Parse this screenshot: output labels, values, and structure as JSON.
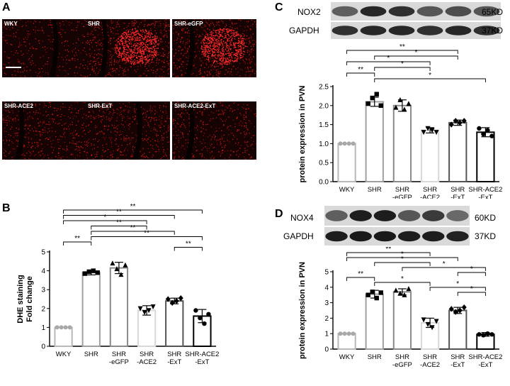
{
  "panelA": {
    "letter": "A",
    "images": [
      {
        "label": "WKY",
        "density": 0.35,
        "cluster": 0,
        "vessel": "right"
      },
      {
        "label": "SHR",
        "density": 0.7,
        "cluster": 1,
        "vessel": "left"
      },
      {
        "label": "SHR-eGFP",
        "density": 0.7,
        "cluster": 1,
        "vessel": "left"
      },
      {
        "label": "SHR-ACE2",
        "density": 0.5,
        "cluster": 0,
        "vessel": "left"
      },
      {
        "label": "SHR-ExT",
        "density": 0.55,
        "cluster": 0,
        "vessel": "right"
      },
      {
        "label": "SHR-ACE2-ExT",
        "density": 0.5,
        "cluster": 0,
        "vessel": "left"
      }
    ]
  },
  "panelB": {
    "letter": "B",
    "ylabel_line1": "DHE staining",
    "ylabel_line2": "Fold change"
  },
  "panelC": {
    "letter": "C",
    "blot_top": "NOX2",
    "blot_top_kd": "65KD",
    "blot_bottom": "GAPDH",
    "blot_bottom_kd": "37KD",
    "ylabel": "protein expression in PVN"
  },
  "panelD": {
    "letter": "D",
    "blot_top": "NOX4",
    "blot_top_kd": "60KD",
    "blot_bottom": "GAPDH",
    "blot_bottom_kd": "37KD",
    "ylabel": "protein expression in PVN"
  },
  "chart_data": [
    {
      "id": "B",
      "type": "bar",
      "categories": [
        [
          "WKY"
        ],
        [
          "SHR"
        ],
        [
          "SHR",
          "-eGFP"
        ],
        [
          "SHR",
          "-ACE2"
        ],
        [
          "SHR",
          "-ExT"
        ],
        [
          "SHR-ACE2",
          "-ExT"
        ]
      ],
      "values": [
        1.0,
        3.9,
        4.15,
        1.9,
        2.4,
        1.6
      ],
      "errors": [
        0.0,
        0.12,
        0.3,
        0.25,
        0.15,
        0.35
      ],
      "points": [
        [
          1,
          1,
          1,
          1
        ],
        [
          3.85,
          3.95,
          4.0,
          3.9
        ],
        [
          4.4,
          4.1,
          3.8,
          4.3
        ],
        [
          2.0,
          1.8,
          1.9,
          2.1
        ],
        [
          2.5,
          2.3,
          2.4,
          2.55
        ],
        [
          1.9,
          1.5,
          1.2,
          1.7
        ]
      ],
      "markers": [
        "circle",
        "square",
        "triangle",
        "down-triangle",
        "diamond",
        "circle"
      ],
      "bar_colors": [
        "#b8b8b8",
        "#a0a0a0",
        "#8a8a8a",
        "#d8d8d8",
        "#555555",
        "#000000"
      ],
      "ylim": [
        0,
        5
      ],
      "yticks": [
        0,
        1,
        2,
        3,
        4,
        5
      ],
      "brackets": [
        {
          "from": 0,
          "to": 5,
          "label": "**"
        },
        {
          "from": 0,
          "to": 4,
          "label": "**"
        },
        {
          "from": 0,
          "to": 3,
          "label": "*"
        },
        {
          "from": 1,
          "to": 3,
          "label": "**"
        },
        {
          "from": 1,
          "to": 4,
          "label": "**"
        },
        {
          "from": 1,
          "to": 5,
          "label": "**"
        },
        {
          "from": 0,
          "to": 1,
          "label": "**"
        },
        {
          "from": 4,
          "to": 5,
          "label": "**"
        }
      ]
    },
    {
      "id": "C",
      "type": "bar",
      "categories": [
        [
          "WKY"
        ],
        [
          "SHR"
        ],
        [
          "SHR",
          "-eGFP"
        ],
        [
          "SHR",
          "-ACE2"
        ],
        [
          "SHR",
          "-ExT"
        ],
        [
          "SHR-ACE2",
          "-ExT"
        ]
      ],
      "values": [
        1.0,
        2.1,
        2.0,
        1.35,
        1.55,
        1.3
      ],
      "errors": [
        0.0,
        0.12,
        0.15,
        0.07,
        0.07,
        0.12
      ],
      "points": [
        [
          1,
          1,
          1,
          1
        ],
        [
          2.05,
          2.2,
          2.3,
          2.0
        ],
        [
          1.95,
          2.15,
          1.9,
          2.05
        ],
        [
          1.3,
          1.4,
          1.35,
          1.3
        ],
        [
          1.5,
          1.6,
          1.55,
          1.6
        ],
        [
          1.4,
          1.25,
          1.35,
          1.2
        ]
      ],
      "markers": [
        "circle",
        "square",
        "triangle",
        "down-triangle",
        "diamond",
        "circle"
      ],
      "bar_colors": [
        "#b8b8b8",
        "#a0a0a0",
        "#8a8a8a",
        "#d8d8d8",
        "#555555",
        "#000000"
      ],
      "ylim": [
        0,
        2.5
      ],
      "yticks": [
        0.0,
        0.5,
        1.0,
        1.5,
        2.0,
        2.5
      ],
      "brackets": [
        {
          "from": 0,
          "to": 4,
          "label": "**"
        },
        {
          "from": 1,
          "to": 4,
          "label": "*"
        },
        {
          "from": 0,
          "to": 3,
          "label": "*"
        },
        {
          "from": 1,
          "to": 3,
          "label": "*"
        },
        {
          "from": 0,
          "to": 1,
          "label": "**"
        },
        {
          "from": 1,
          "to": 5,
          "label": "*"
        }
      ]
    },
    {
      "id": "D",
      "type": "bar",
      "categories": [
        [
          "WKY"
        ],
        [
          "SHR"
        ],
        [
          "SHR",
          "-eGFP"
        ],
        [
          "SHR",
          "-ACE2"
        ],
        [
          "SHR",
          "-ExT"
        ],
        [
          "SHR-ACE2",
          "-ExT"
        ]
      ],
      "values": [
        1.0,
        3.55,
        3.7,
        1.7,
        2.5,
        0.95
      ],
      "errors": [
        0.0,
        0.25,
        0.2,
        0.3,
        0.2,
        0.12
      ],
      "points": [
        [
          1,
          1,
          1,
          1
        ],
        [
          3.5,
          3.7,
          3.3,
          3.65
        ],
        [
          3.8,
          3.6,
          3.5,
          3.9
        ],
        [
          1.9,
          1.6,
          1.4,
          1.8
        ],
        [
          2.6,
          2.4,
          2.5,
          2.7
        ],
        [
          0.95,
          0.9,
          1.0,
          0.95
        ]
      ],
      "markers": [
        "circle",
        "square",
        "triangle",
        "down-triangle",
        "diamond",
        "circle"
      ],
      "bar_colors": [
        "#b8b8b8",
        "#a0a0a0",
        "#8a8a8a",
        "#d8d8d8",
        "#555555",
        "#000000"
      ],
      "ylim": [
        0,
        5
      ],
      "yticks": [
        0,
        1,
        2,
        3,
        4,
        5
      ],
      "brackets": [
        {
          "from": 0,
          "to": 3,
          "label": "**"
        },
        {
          "from": 0,
          "to": 4,
          "label": "*"
        },
        {
          "from": 1,
          "to": 3,
          "label": "*"
        },
        {
          "from": 2,
          "to": 5,
          "label": "*"
        },
        {
          "from": 4,
          "to": 5,
          "label": "*"
        },
        {
          "from": 0,
          "to": 1,
          "label": "**"
        },
        {
          "from": 1,
          "to": 3,
          "label": "*"
        },
        {
          "from": 3,
          "to": 5,
          "label": "*"
        },
        {
          "from": 4,
          "to": 5,
          "label": "*"
        }
      ]
    }
  ]
}
